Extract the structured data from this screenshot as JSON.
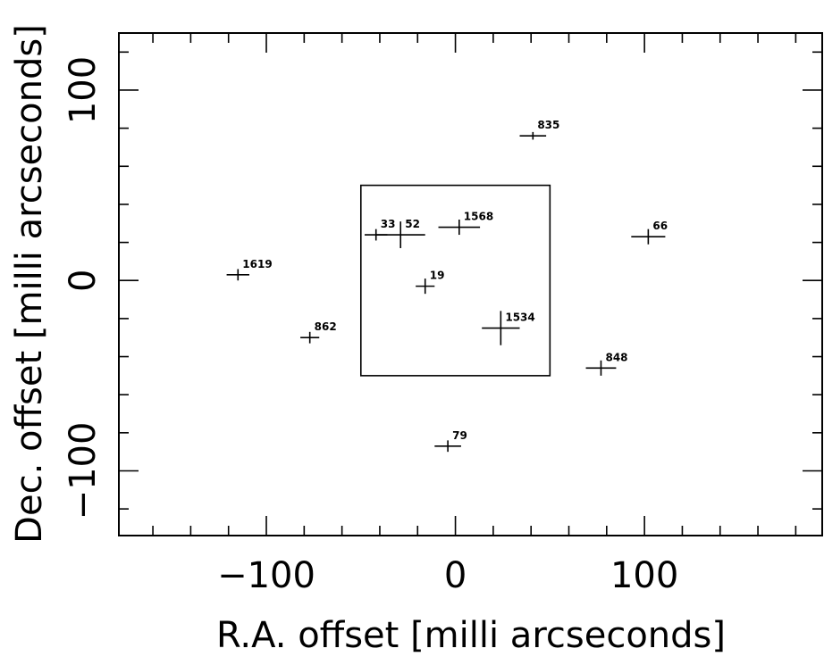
{
  "chart_data": {
    "type": "scatter",
    "title": "",
    "xlabel": "R.A. offset [milli arcseconds]",
    "ylabel": "Dec. offset [milli arcseconds]",
    "xlim": [
      -178,
      194
    ],
    "ylim": [
      -134,
      130
    ],
    "x_ticks": [
      -100,
      0,
      100
    ],
    "y_ticks": [
      -100,
      0,
      100
    ],
    "grid": false,
    "legend": "none",
    "region_box": {
      "x0": -50,
      "x1": 50,
      "y0": -50,
      "y1": 50
    },
    "points": [
      {
        "label": "835",
        "x": 41,
        "y": 76,
        "xerr": 7,
        "yerr": 2
      },
      {
        "label": "66",
        "x": 102,
        "y": 23,
        "xerr": 9,
        "yerr": 4
      },
      {
        "label": "1619",
        "x": -115,
        "y": 3,
        "xerr": 6,
        "yerr": 3
      },
      {
        "label": "33",
        "x": -42,
        "y": 24,
        "xerr": 6,
        "yerr": 3
      },
      {
        "label": "52",
        "x": -29,
        "y": 24,
        "xerr": 13,
        "yerr": 7
      },
      {
        "label": "1568",
        "x": 2,
        "y": 28,
        "xerr": 11,
        "yerr": 4
      },
      {
        "label": "19",
        "x": -16,
        "y": -3,
        "xerr": 5,
        "yerr": 4
      },
      {
        "label": "1534",
        "x": 24,
        "y": -25,
        "xerr": 10,
        "yerr": 9
      },
      {
        "label": "862",
        "x": -77,
        "y": -30,
        "xerr": 5,
        "yerr": 3
      },
      {
        "label": "848",
        "x": 77,
        "y": -46,
        "xerr": 8,
        "yerr": 4
      },
      {
        "label": "79",
        "x": -4,
        "y": -87,
        "xerr": 7,
        "yerr": 3
      }
    ]
  }
}
